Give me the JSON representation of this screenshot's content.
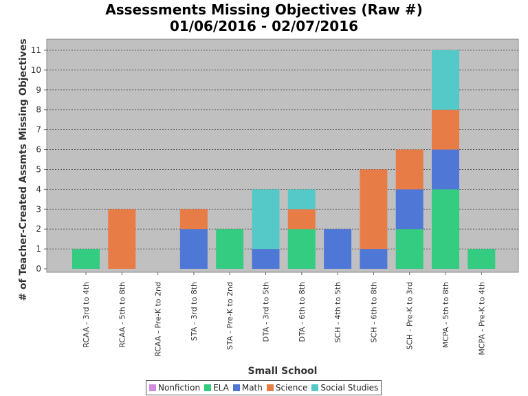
{
  "chart_data": {
    "type": "bar",
    "stacked": true,
    "title": "Assessments Missing Objectives (Raw #)",
    "subtitle": "01/06/2016 - 02/07/2016",
    "xlabel": "Small School",
    "ylabel": "# of Teacher-Created Assmts Missing Objectives",
    "ylim": [
      0,
      11
    ],
    "yticks": [
      "0",
      "1",
      "2",
      "3",
      "4",
      "5",
      "6",
      "7",
      "8",
      "9",
      "10",
      "11"
    ],
    "grid": true,
    "legend_position": "bottom",
    "categories": [
      "RCAA - 3rd to 4th",
      "RCAA - 5th to 8th",
      "RCAA - Pre-K to 2nd",
      "STA - 3rd to 8th",
      "STA - Pre-K to 2nd",
      "DTA - 3rd to 5th",
      "DTA - 6th to 8th",
      "SCH - 4th to 5th",
      "SCH - 6th to 8th",
      "SCH - Pre-K to 3rd",
      "MCPA - 5th to 8th",
      "MCPA - Pre-K to 4th"
    ],
    "series": [
      {
        "name": "Nonfiction",
        "color": "#d08ae0",
        "values": [
          0,
          0,
          0,
          0,
          0,
          0,
          0,
          0,
          0,
          0,
          0,
          0
        ]
      },
      {
        "name": "ELA",
        "color": "#33cc80",
        "values": [
          1,
          0,
          0,
          0,
          2,
          0,
          2,
          0,
          0,
          2,
          4,
          1
        ]
      },
      {
        "name": "Math",
        "color": "#4f78d6",
        "values": [
          0,
          0,
          0,
          2,
          0,
          1,
          0,
          2,
          1,
          2,
          2,
          0
        ]
      },
      {
        "name": "Science",
        "color": "#e87c46",
        "values": [
          0,
          3,
          0,
          1,
          0,
          0,
          1,
          0,
          4,
          2,
          2,
          0
        ]
      },
      {
        "name": "Social Studies",
        "color": "#55c8c8",
        "values": [
          0,
          0,
          0,
          0,
          0,
          3,
          1,
          0,
          0,
          0,
          3,
          0
        ]
      }
    ]
  }
}
